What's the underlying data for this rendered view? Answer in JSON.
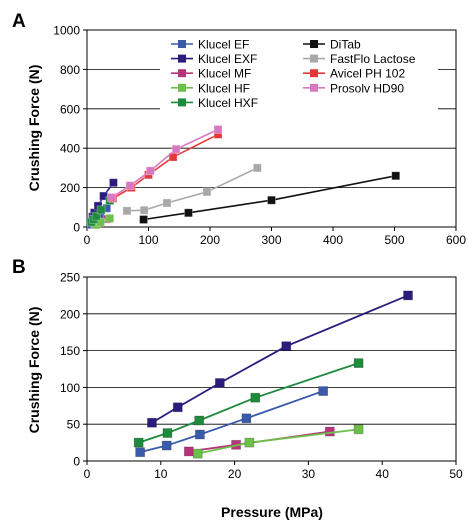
{
  "chart_data": [
    {
      "panel_label": "A",
      "type": "scatter",
      "xlabel": "",
      "ylabel": "Crushing Force (N)",
      "xlim": [
        0,
        600
      ],
      "ylim": [
        0,
        1000
      ],
      "x_ticks": [
        0,
        100,
        200,
        300,
        400,
        500,
        600
      ],
      "y_ticks": [
        0,
        200,
        400,
        600,
        800,
        1000
      ],
      "grid": "horizontal",
      "legend_position": "top-right",
      "legend_columns": [
        [
          "Klucel EF",
          "Klucel EXF",
          "Klucel MF",
          "Klucel HF",
          "Klucel HXF"
        ],
        [
          "DiTab",
          "FastFlo Lactose",
          "Avicel PH 102",
          "Prosolv HD90"
        ]
      ],
      "series": [
        {
          "name": "Klucel EF",
          "color": "#3a5bab",
          "marker": "square",
          "x": [
            7,
            12,
            17,
            22,
            32
          ],
          "y": [
            12,
            20,
            35,
            60,
            95
          ]
        },
        {
          "name": "Klucel EXF",
          "color": "#2b1c7e",
          "marker": "square",
          "x": [
            9,
            12,
            18,
            27,
            43
          ],
          "y": [
            52,
            73,
            107,
            157,
            225
          ]
        },
        {
          "name": "Klucel MF",
          "color": "#b8347a",
          "marker": "square",
          "x": [
            14,
            20,
            33
          ],
          "y": [
            13,
            22,
            40
          ]
        },
        {
          "name": "Klucel HF",
          "color": "#6cc04a",
          "marker": "square",
          "x": [
            15,
            22,
            37
          ],
          "y": [
            11,
            25,
            44
          ]
        },
        {
          "name": "Klucel HXF",
          "color": "#1e8a3c",
          "marker": "square",
          "x": [
            7,
            11,
            15,
            23,
            37
          ],
          "y": [
            25,
            38,
            55,
            87,
            134
          ]
        },
        {
          "name": "DiTab",
          "color": "#111111",
          "marker": "square",
          "x": [
            92,
            165,
            300,
            502
          ],
          "y": [
            38,
            72,
            136,
            260
          ]
        },
        {
          "name": "FastFlo Lactose",
          "color": "#a8a8a8",
          "marker": "square",
          "x": [
            65,
            93,
            130,
            195,
            277
          ],
          "y": [
            82,
            85,
            122,
            178,
            300
          ]
        },
        {
          "name": "Avicel PH 102",
          "color": "#e23a3a",
          "marker": "square",
          "x": [
            42,
            72,
            100,
            140,
            213
          ],
          "y": [
            145,
            200,
            265,
            355,
            470
          ]
        },
        {
          "name": "Prosolv HD90",
          "color": "#d878c0",
          "marker": "square",
          "x": [
            40,
            70,
            103,
            145,
            213
          ],
          "y": [
            150,
            210,
            285,
            395,
            495
          ]
        }
      ]
    },
    {
      "panel_label": "B",
      "type": "line",
      "xlabel": "Pressure (MPa)",
      "ylabel": "Crushing Force (N)",
      "xlim": [
        0,
        50
      ],
      "ylim": [
        0,
        250
      ],
      "x_ticks": [
        0,
        10,
        20,
        30,
        40,
        50
      ],
      "y_ticks": [
        0,
        50,
        100,
        150,
        200,
        250
      ],
      "grid": "horizontal",
      "series": [
        {
          "name": "Klucel EXF",
          "color": "#2b1c7e",
          "x": [
            8.8,
            12.3,
            18.0,
            27.0,
            43.5
          ],
          "y": [
            52,
            73,
            106,
            156,
            225
          ]
        },
        {
          "name": "Klucel HXF",
          "color": "#1e8a3c",
          "x": [
            7.0,
            10.9,
            15.2,
            22.8,
            36.8
          ],
          "y": [
            25,
            38,
            55,
            86,
            133
          ]
        },
        {
          "name": "Klucel EF",
          "color": "#3a5bab",
          "x": [
            7.2,
            10.8,
            15.3,
            21.6,
            32.0
          ],
          "y": [
            12,
            21,
            36,
            58,
            95
          ]
        },
        {
          "name": "Klucel MF",
          "color": "#b8347a",
          "x": [
            13.8,
            20.2,
            32.9
          ],
          "y": [
            13,
            22,
            40
          ]
        },
        {
          "name": "Klucel HF",
          "color": "#6cc04a",
          "x": [
            15.0,
            22.0,
            36.8
          ],
          "y": [
            10,
            25,
            43
          ]
        }
      ]
    }
  ]
}
